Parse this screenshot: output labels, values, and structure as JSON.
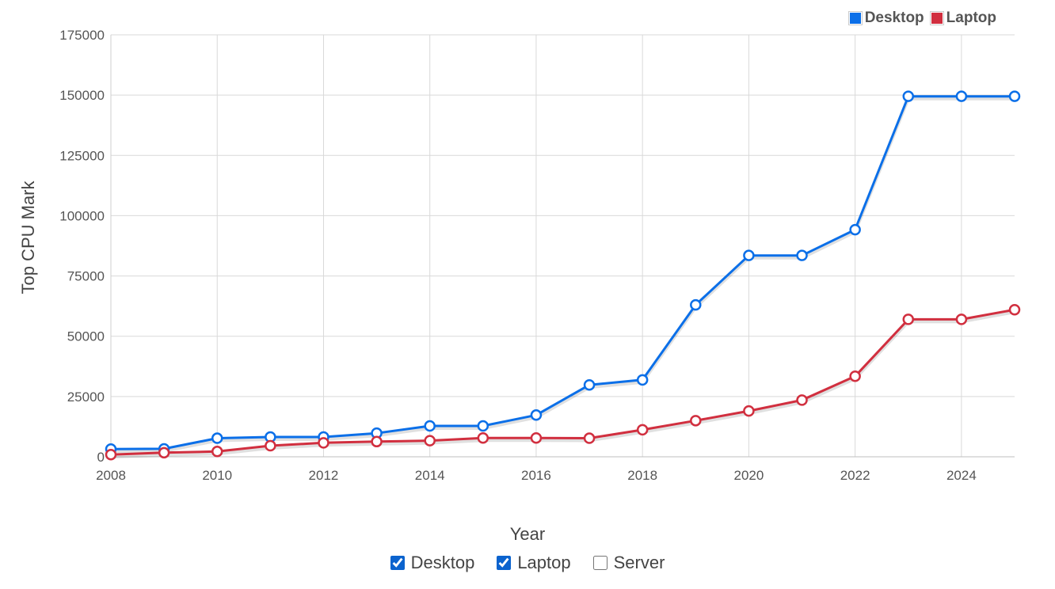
{
  "legend": [
    {
      "label": "Desktop",
      "color": "#0b6fe8"
    },
    {
      "label": "Laptop",
      "color": "#d12f3f"
    }
  ],
  "filters": [
    {
      "label": "Desktop",
      "checked": true
    },
    {
      "label": "Laptop",
      "checked": true
    },
    {
      "label": "Server",
      "checked": false
    }
  ],
  "chart_data": {
    "type": "line",
    "xlabel": "Year",
    "ylabel": "Top CPU Mark",
    "xlim": [
      2008,
      2025
    ],
    "ylim": [
      0,
      175000
    ],
    "x_ticks": [
      "2008",
      "2010",
      "2012",
      "2014",
      "2016",
      "2018",
      "2020",
      "2022",
      "2024"
    ],
    "y_ticks": [
      "0",
      "25000",
      "50000",
      "75000",
      "100000",
      "125000",
      "150000",
      "175000"
    ],
    "grid": true,
    "legend_position": "top-right",
    "x": [
      2008,
      2009,
      2010,
      2011,
      2012,
      2013,
      2014,
      2015,
      2016,
      2017,
      2018,
      2019,
      2020,
      2021,
      2022,
      2023,
      2024,
      2025
    ],
    "series": [
      {
        "name": "Desktop",
        "color": "#0b6fe8",
        "values": [
          3200,
          3300,
          7700,
          8200,
          8200,
          9800,
          12800,
          12800,
          17300,
          29800,
          31900,
          63000,
          83500,
          83500,
          94200,
          149500,
          149500,
          149500
        ]
      },
      {
        "name": "Laptop",
        "color": "#d12f3f",
        "values": [
          900,
          1700,
          2200,
          4600,
          5800,
          6300,
          6700,
          7800,
          7800,
          7700,
          11200,
          15000,
          19000,
          23500,
          33400,
          57000,
          57000,
          61000
        ]
      }
    ]
  }
}
